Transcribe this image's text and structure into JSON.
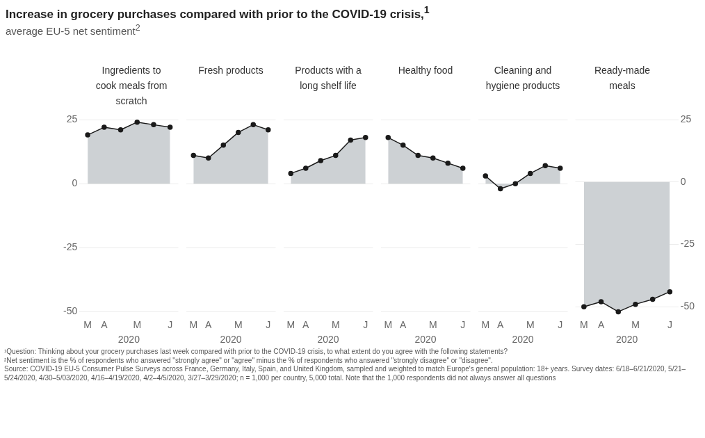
{
  "chart_data": [
    {
      "type": "area",
      "title": "Increase in grocery purchases compared with prior to the COVID-19 crisis,$^{1}$",
      "subtitle": "average EU-5 net sentiment$^{2}$",
      "legend_title": "Ingredients to cook meals from scratch",
      "xlabel": "2020",
      "categories": [
        "M",
        "A",
        null,
        "M",
        null,
        "J"
      ],
      "series": [
        {
          "color": "#1a1a1a",
          "values": [
            19,
            22,
            21,
            24,
            23,
            22
          ]
        }
      ],
      "ylim": [
        -50,
        25
      ],
      "yticks": [
        -50,
        -25,
        0,
        25
      ],
      "grid": "y",
      "marker": "circle",
      "annotations": [
        "¹Question: Thinking about your grocery purchases last week compared with prior to the COVID-19 crisis, to what extent do you agree with the following statements?",
        "²Net sentiment is the % of respondents who answered \"strongly agree\" or \"agree\" minus the % of respondents who answered \"strongly disagree\" or \"disagree\".",
        "Source: COVID-19 EU-5 Consumer Pulse Surveys across France, Germany, Italy, Spain, and United Kingdom, sampled and weighted to match Europe's general population: 18+ years. Survey dates: 6/18–6/21/2020, 5/21–5/24/2020, 4/30–5/03/2020, 4/16–4/19/2020, 4/2–4/5/2020, 3/27–3/29/2020; n = 1,000 per country, 5,000 total. Note that the 1,000 respondents did not always answer all questions"
      ]
    },
    {
      "type": "area",
      "legend_title": "Fresh products",
      "xlabel": "2020",
      "categories": [
        "M",
        "A",
        null,
        "M",
        null,
        "J"
      ],
      "series": [
        {
          "color": "#1a1a1a",
          "values": [
            11,
            10,
            15,
            20,
            23,
            21
          ]
        }
      ],
      "ylim": [
        -50,
        25
      ],
      "yticks": [
        -50,
        -25,
        0,
        25
      ],
      "grid": "y",
      "marker": "circle",
      "tick_labels": "x"
    },
    {
      "type": "area",
      "legend_title": "Products with a long shelf life",
      "xlabel": "2020",
      "categories": [
        "M",
        "A",
        null,
        "M",
        null,
        "J"
      ],
      "series": [
        {
          "color": "#1a1a1a",
          "values": [
            4,
            6,
            9,
            11,
            17,
            18
          ]
        }
      ],
      "ylim": [
        -50,
        25
      ],
      "yticks": [
        -50,
        -25,
        0,
        25
      ],
      "grid": "y",
      "marker": "circle",
      "tick_labels": "x"
    },
    {
      "type": "area",
      "legend_title": "Healthy food",
      "xlabel": "2020",
      "categories": [
        "M",
        "A",
        null,
        "M",
        null,
        "J"
      ],
      "series": [
        {
          "color": "#1a1a1a",
          "values": [
            18,
            15,
            11,
            10,
            8,
            6
          ]
        }
      ],
      "ylim": [
        -50,
        25
      ],
      "yticks": [
        -50,
        -25,
        0,
        25
      ],
      "grid": "y",
      "marker": "circle",
      "tick_labels": "x"
    },
    {
      "type": "area",
      "legend_title": "Cleaning and hygiene products",
      "xlabel": "2020",
      "categories": [
        "M",
        "A",
        null,
        "M",
        null,
        "J"
      ],
      "series": [
        {
          "color": "#1a1a1a",
          "values": [
            3,
            -2,
            0,
            4,
            7,
            6
          ]
        }
      ],
      "ylim": [
        -50,
        25
      ],
      "yticks": [
        -50,
        -25,
        0,
        25
      ],
      "grid": "y",
      "marker": "circle",
      "tick_labels": "x"
    },
    {
      "type": "area",
      "legend_title": "Ready-made meals",
      "xlabel": "2020",
      "categories": [
        "M",
        "A",
        null,
        "M",
        null,
        "J"
      ],
      "series": [
        {
          "color": "#1a1a1a",
          "values": [
            -50,
            -48,
            -52,
            -49,
            -47,
            -44
          ]
        }
      ],
      "ylim": [
        -52,
        25
      ],
      "yticks": [
        -50,
        -25,
        0,
        25
      ],
      "grid": "y",
      "marker": "circle"
    }
  ]
}
